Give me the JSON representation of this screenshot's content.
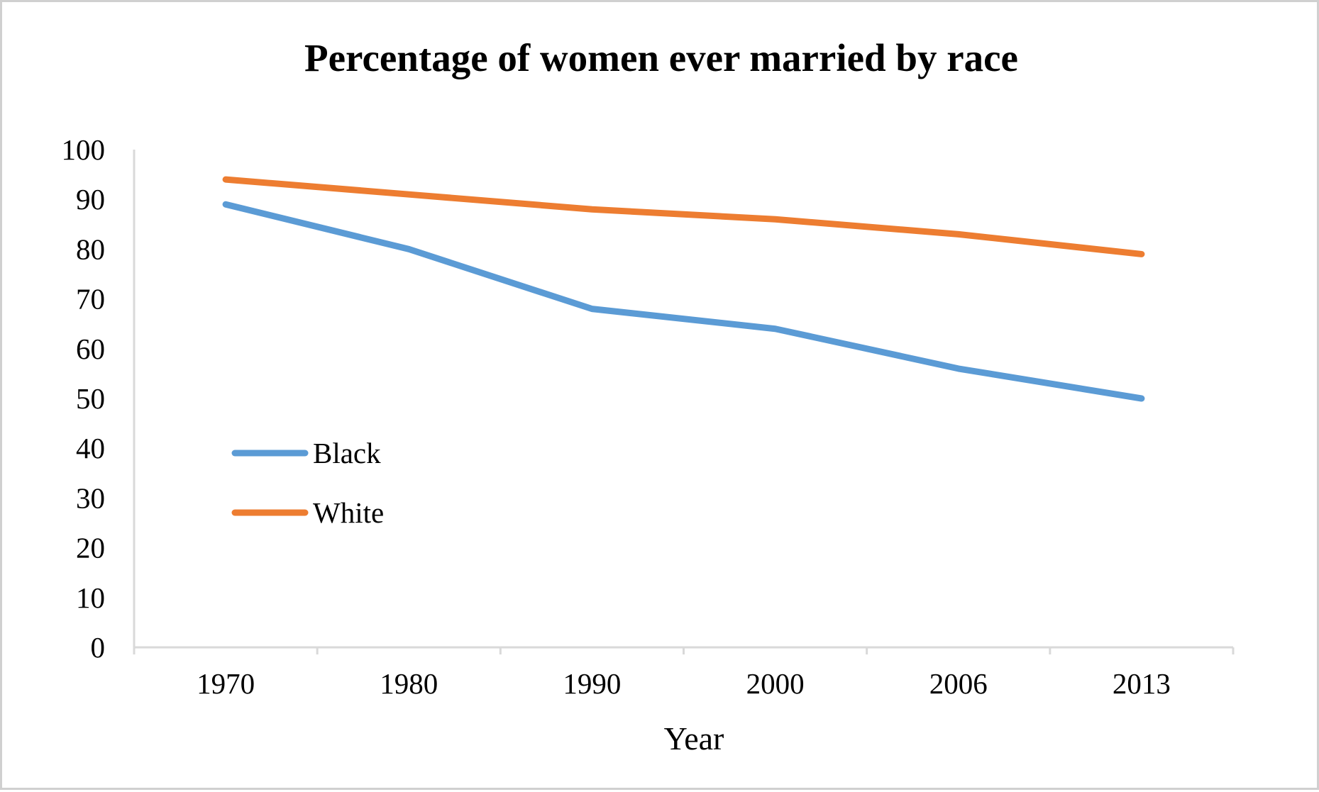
{
  "chart_data": {
    "type": "line",
    "title": "Percentage of women ever married by race",
    "xlabel": "Year",
    "ylabel": "",
    "categories": [
      "1970",
      "1980",
      "1990",
      "2000",
      "2006",
      "2013"
    ],
    "ylim": [
      0,
      100
    ],
    "yticks": [
      0,
      10,
      20,
      30,
      40,
      50,
      60,
      70,
      80,
      90,
      100
    ],
    "grid": false,
    "legend_position": "left",
    "series": [
      {
        "name": "Black",
        "color": "#5b9bd5",
        "values": [
          89,
          80,
          68,
          64,
          56,
          50
        ]
      },
      {
        "name": "White",
        "color": "#ed7d31",
        "values": [
          94,
          91,
          88,
          86,
          83,
          79
        ]
      }
    ]
  }
}
